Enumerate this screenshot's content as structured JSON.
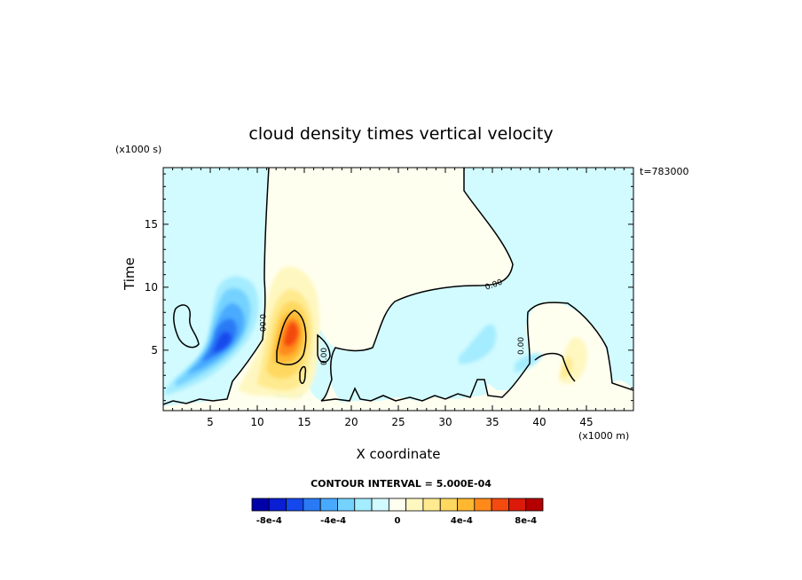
{
  "figure": {
    "title": "cloud density times vertical velocity",
    "y_unit": "(x1000 s)",
    "x_unit": "(x1000 m)",
    "time_stamp": "t=783000",
    "contour_interval": "CONTOUR INTERVAL = 5.000E-04",
    "contour_line_label": "0.00"
  },
  "chart_data": {
    "type": "heatmap",
    "title": "cloud density times vertical velocity",
    "xlabel": "X coordinate",
    "ylabel": "Time",
    "xlim": [
      0,
      50
    ],
    "ylim": [
      0.2,
      19.5
    ],
    "x_ticks": [
      5,
      10,
      15,
      20,
      25,
      30,
      35,
      40,
      45
    ],
    "y_ticks": [
      5,
      10,
      15
    ],
    "grid": false,
    "colorbar": {
      "colors": [
        "#0000a8",
        "#0a1ed4",
        "#1448ec",
        "#2a7af6",
        "#48aaff",
        "#74d2ff",
        "#a4ecff",
        "#d2fbff",
        "#fffff0",
        "#fff7c0",
        "#ffea90",
        "#ffd860",
        "#ffb830",
        "#ff8a1a",
        "#f44a10",
        "#dc1a0a",
        "#b40000"
      ],
      "tick_labels": [
        "-8e-4",
        "-4e-4",
        "0",
        "4e-4",
        "8e-4"
      ],
      "tick_values": [
        -0.0008,
        -0.0004,
        0,
        0.0004,
        0.0008
      ]
    },
    "features": [
      {
        "kind": "negative-core",
        "x": 6.5,
        "y": 5.8,
        "value": -0.0008
      },
      {
        "kind": "positive-core",
        "x": 14.0,
        "y": 6.8,
        "value": 0.0009
      },
      {
        "kind": "weak-positive",
        "x": 44.0,
        "y": 4.5,
        "value": 0.0003
      },
      {
        "kind": "weak-negative",
        "x": 34.5,
        "y": 5.5,
        "value": -0.0002
      }
    ]
  }
}
